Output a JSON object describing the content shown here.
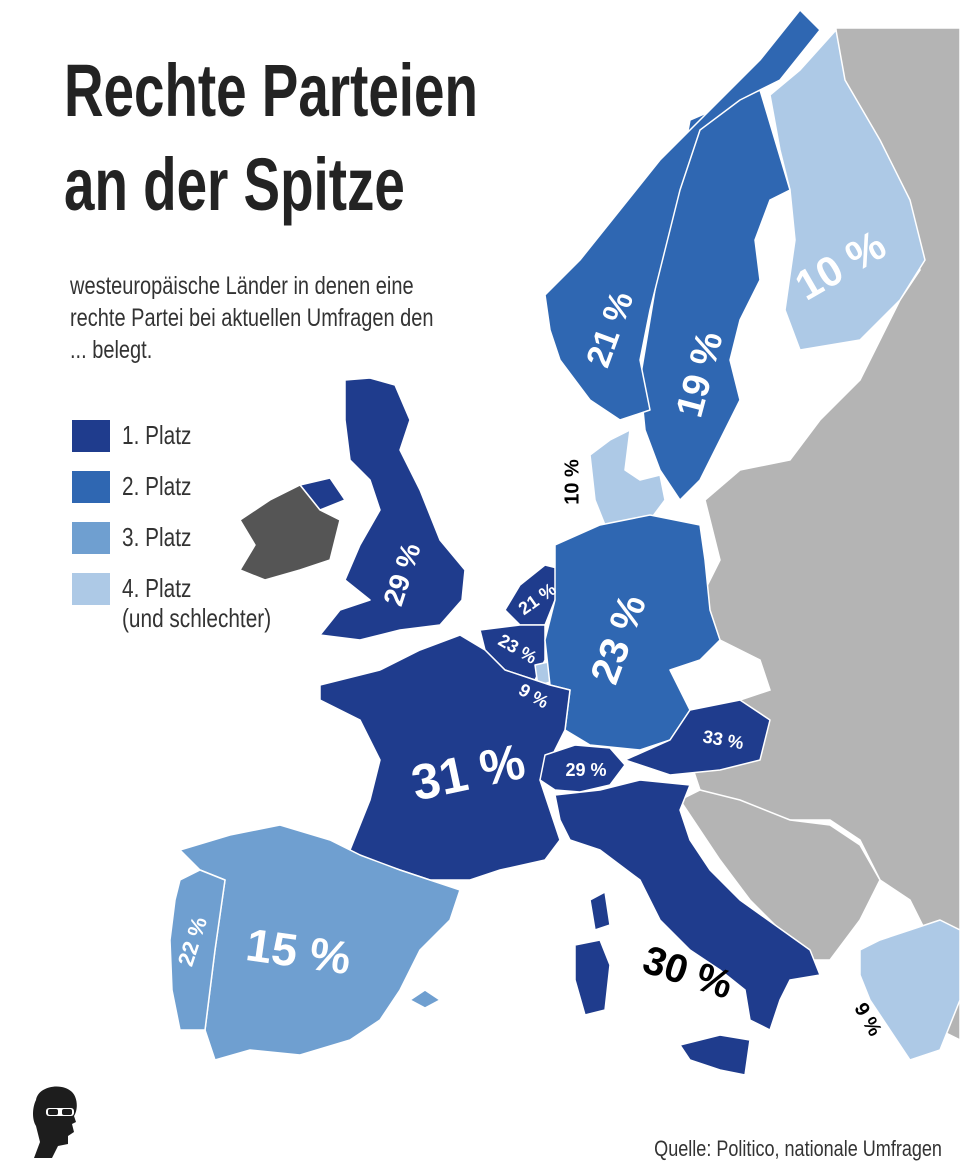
{
  "title_line1": "Rechte Parteien",
  "title_line2": "an der Spitze",
  "subtitle": "westeuropäische Länder in denen eine rechte Partei bei aktuellen Umfragen den ... belegt.",
  "legend": [
    {
      "label": "1. Platz",
      "color": "#1f3c8d"
    },
    {
      "label": "2. Platz",
      "color": "#2f67b2"
    },
    {
      "label": "3. Platz",
      "color": "#6f9fd0"
    },
    {
      "label": "4. Platz\n(und schlechter)",
      "color": "#adc9e6"
    }
  ],
  "colors": {
    "other_country": "#b4b4b4",
    "ireland": "#555555",
    "border": "#ffffff",
    "sea": "#ffffff"
  },
  "countries": [
    {
      "name": "norway",
      "label": "21 %",
      "rank": 2
    },
    {
      "name": "sweden",
      "label": "19 %",
      "rank": 2
    },
    {
      "name": "finland",
      "label": "10 %",
      "rank": 4
    },
    {
      "name": "denmark",
      "label": "10 %",
      "rank": 4
    },
    {
      "name": "united-kingdom",
      "label": "29 %",
      "rank": 1
    },
    {
      "name": "netherlands",
      "label": "21 %",
      "rank": 1
    },
    {
      "name": "belgium",
      "label": "23 %",
      "rank": 1
    },
    {
      "name": "luxembourg",
      "label": "9 %",
      "rank": 4
    },
    {
      "name": "germany",
      "label": "23 %",
      "rank": 2
    },
    {
      "name": "france",
      "label": "31 %",
      "rank": 1
    },
    {
      "name": "switzerland",
      "label": "29 %",
      "rank": 1
    },
    {
      "name": "austria",
      "label": "33 %",
      "rank": 1
    },
    {
      "name": "italy",
      "label": "30 %",
      "rank": 1
    },
    {
      "name": "spain",
      "label": "15 %",
      "rank": 3
    },
    {
      "name": "portugal",
      "label": "22 %",
      "rank": 3
    },
    {
      "name": "greece",
      "label": "9 %",
      "rank": 4
    }
  ],
  "source": "Quelle: Politico, nationale Umfragen",
  "logo_icon": "face-with-sunglasses-icon"
}
